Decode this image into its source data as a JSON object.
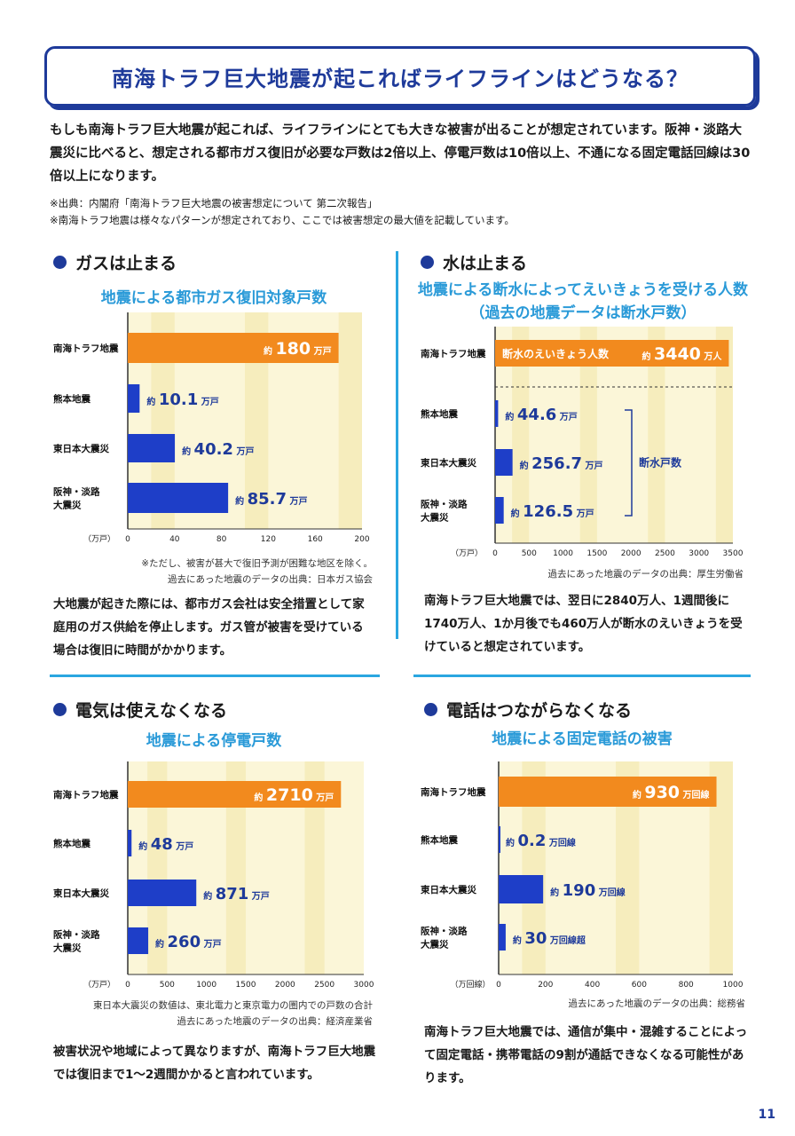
{
  "title": "南海トラフ巨大地震が起こればライフラインはどうなる？",
  "intro": "もしも南海トラフ巨大地震が起これば、ライフラインにとても大きな被害が出ることが想定されています。阪神・淡路大震災に比べると、想定される都市ガス復旧が必要な戸数は2倍以上、停電戸数は10倍以上、不通になる固定電話回線は30倍以上になります。",
  "notes": [
    "※出典：内閣府「南海トラフ巨大地震の被害想定について 第二次報告」",
    "※南海トラフ地震は様々なパターンが想定されており、ここでは被害想定の最大値を記載しています。"
  ],
  "colors": {
    "orange": "#f28a1e",
    "blue": "#1e3ec8",
    "bg": "#fbf6d8",
    "grid": "#f2e6a8",
    "accent": "#2a9ad8",
    "navy": "#1e3a9a"
  },
  "page_number": "11",
  "sections": [
    {
      "heading": "ガスは止まる",
      "chart_title": "地震による都市ガス復旧対象戸数",
      "sources": [
        "※ただし、被害が甚大で復旧予測が困難な地区を除く。",
        "過去にあった地震のデータの出典：日本ガス協会"
      ],
      "body": "大地震が起きた際には、都市ガス会社は安全措置として家庭用のガス供給を停止します。ガス管が被害を受けている場合は復旧に時間がかかります。"
    },
    {
      "heading": "水は止まる",
      "chart_title": "地震による断水によってえいきょうを受ける人数",
      "chart_subtitle": "（過去の地震データは断水戸数）",
      "sources": [
        "過去にあった地震のデータの出典：厚生労働省"
      ],
      "body": "南海トラフ巨大地震では、翌日に2840万人、1週間後に1740万人、1か月後でも460万人が断水のえいきょうを受けていると想定されています。"
    },
    {
      "heading": "電気は使えなくなる",
      "chart_title": "地震による停電戸数",
      "sources": [
        "東日本大震災の数値は、東北電力と東京電力の圏内での戸数の合計",
        "過去にあった地震のデータの出典：経済産業省"
      ],
      "body": "被害状況や地域によって異なりますが、南海トラフ巨大地震では復旧まで1〜2週間かかると言われています。"
    },
    {
      "heading": "電話はつながらなくなる",
      "chart_title": "地震による固定電話の被害",
      "sources": [
        "過去にあった地震のデータの出典：総務省"
      ],
      "body": "南海トラフ巨大地震では、通信が集中・混雑することによって固定電話・携帯電話の9割が通話できなくなる可能性があります。"
    }
  ],
  "chart_data": [
    {
      "type": "bar",
      "orientation": "horizontal",
      "title": "地震による都市ガス復旧対象戸数",
      "categories": [
        "南海トラフ地震",
        "熊本地震",
        "東日本大震災",
        "阪神・淡路大震災"
      ],
      "values": [
        180,
        10.1,
        40.2,
        85.7
      ],
      "value_prefix": "約",
      "unit": "万戸",
      "xlabel": "（万戸）",
      "xlim": [
        0,
        200
      ],
      "xticks": [
        0,
        40,
        80,
        120,
        160,
        200
      ]
    },
    {
      "type": "bar",
      "orientation": "horizontal",
      "title": "地震による断水によってえいきょうを受ける人数",
      "categories": [
        "南海トラフ地震",
        "熊本地震",
        "東日本大震災",
        "阪神・淡路大震災"
      ],
      "values": [
        3440,
        44.6,
        256.7,
        126.5
      ],
      "value_prefix": "約",
      "units": [
        "万人",
        "万戸",
        "万戸",
        "万戸"
      ],
      "xlabel": "（万戸）",
      "xlim": [
        0,
        3500
      ],
      "xticks": [
        0,
        500,
        1000,
        1500,
        2000,
        2500,
        3000,
        3500
      ],
      "inner_label": "断水のえいきょう人数",
      "bracket_label": "断水戸数"
    },
    {
      "type": "bar",
      "orientation": "horizontal",
      "title": "地震による停電戸数",
      "categories": [
        "南海トラフ地震",
        "熊本地震",
        "東日本大震災",
        "阪神・淡路大震災"
      ],
      "values": [
        2710,
        48,
        871,
        260
      ],
      "value_prefix": "約",
      "unit": "万戸",
      "xlabel": "（万戸）",
      "xlim": [
        0,
        3000
      ],
      "xticks": [
        0,
        500,
        1000,
        1500,
        2000,
        2500,
        3000
      ]
    },
    {
      "type": "bar",
      "orientation": "horizontal",
      "title": "地震による固定電話の被害",
      "categories": [
        "南海トラフ地震",
        "熊本地震",
        "東日本大震災",
        "阪神・淡路大震災"
      ],
      "values": [
        930,
        0.2,
        190,
        30
      ],
      "value_prefix": "約",
      "units": [
        "万回線",
        "万回線",
        "万回線",
        "万回線超"
      ],
      "xlabel": "（万回線）",
      "xlim": [
        0,
        1000
      ],
      "xticks": [
        0,
        200,
        400,
        600,
        800,
        1000
      ]
    }
  ]
}
